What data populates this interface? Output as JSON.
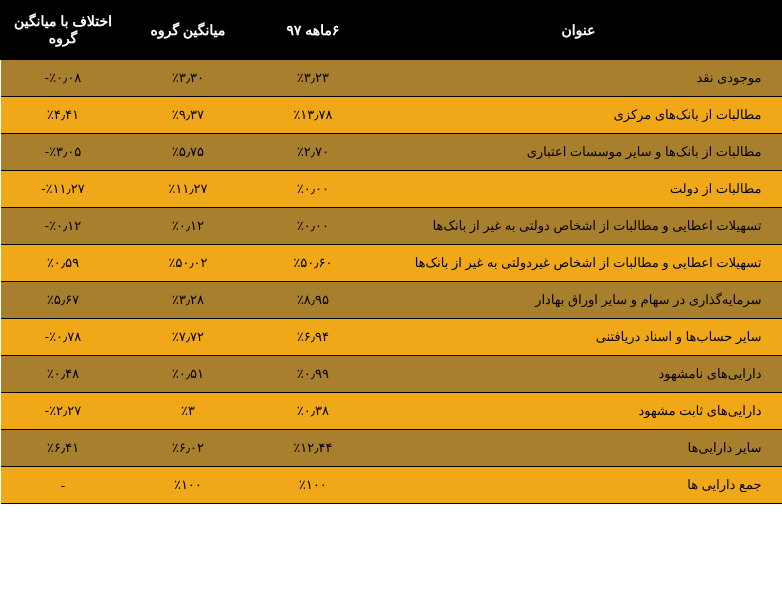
{
  "headers": {
    "title": "عنوان",
    "period": "۶ماهه ۹۷",
    "groupAvg": "میانگین گروه",
    "diff": "اختلاف با میانگین گروه"
  },
  "rows": [
    {
      "title": "موجودی نقد",
      "period": "٪۳٫۲۳",
      "groupAvg": "٪۳٫۳۰",
      "diff": "٪۰٫۰۸-"
    },
    {
      "title": "مطالبات از بانک‌های مرکزی",
      "period": "٪۱۳٫۷۸",
      "groupAvg": "٪۹٫۳۷",
      "diff": "٪۴٫۴۱"
    },
    {
      "title": "مطالبات از بانک‌ها و سایر موسسات اعتباری",
      "period": "٪۲٫۷۰",
      "groupAvg": "٪۵٫۷۵",
      "diff": "٪۳٫۰۵-"
    },
    {
      "title": "مطالبات از دولت",
      "period": "٪۰٫۰۰",
      "groupAvg": "٪۱۱٫۲۷",
      "diff": "٪۱۱٫۲۷-"
    },
    {
      "title": "تسهیلات اعطایی و مطالبات از اشخاص دولتی به غیر از بانک‌ها",
      "period": "٪۰٫۰۰",
      "groupAvg": "٪۰٫۱۲",
      "diff": "٪۰٫۱۲-"
    },
    {
      "title": "تسهیلات اعطایی و مطالبات از اشخاص غیردولتی به غیر از بانک‌ها",
      "period": "٪۵۰٫۶۰",
      "groupAvg": "٪۵۰٫۰۲",
      "diff": "٪۰٫۵۹"
    },
    {
      "title": "سرمایه‌گذاری در سهام و سایر اوراق بهادار",
      "period": "٪۸٫۹۵",
      "groupAvg": "٪۳٫۲۸",
      "diff": "٪۵٫۶۷"
    },
    {
      "title": "سایر حساب‌ها و اسناد دریافتنی",
      "period": "٪۶٫۹۴",
      "groupAvg": "٪۷٫۷۲",
      "diff": "٪۰٫۷۸-"
    },
    {
      "title": "دارایی‌های نامشهود",
      "period": "٪۰٫۹۹",
      "groupAvg": "٪۰٫۵۱",
      "diff": "٪۰٫۴۸"
    },
    {
      "title": "دارایی‌های ثابت مشهود",
      "period": "٪۰٫۳۸",
      "groupAvg": "٪۳",
      "diff": "٪۲٫۲۷-"
    },
    {
      "title": "سایر دارایی‌ها",
      "period": "٪۱۲٫۴۴",
      "groupAvg": "٪۶٫۰۲",
      "diff": "٪۶٫۴۱"
    },
    {
      "title": "جمع دارایی ها",
      "period": "٪۱۰۰",
      "groupAvg": "٪۱۰۰",
      "diff": "-"
    }
  ],
  "colors": {
    "headerBg": "#000000",
    "headerText": "#ffffff",
    "oddRowBg": "#a87f2c",
    "evenRowBg": "#f0a818",
    "borderColor": "#000000",
    "textColor": "#000000"
  }
}
